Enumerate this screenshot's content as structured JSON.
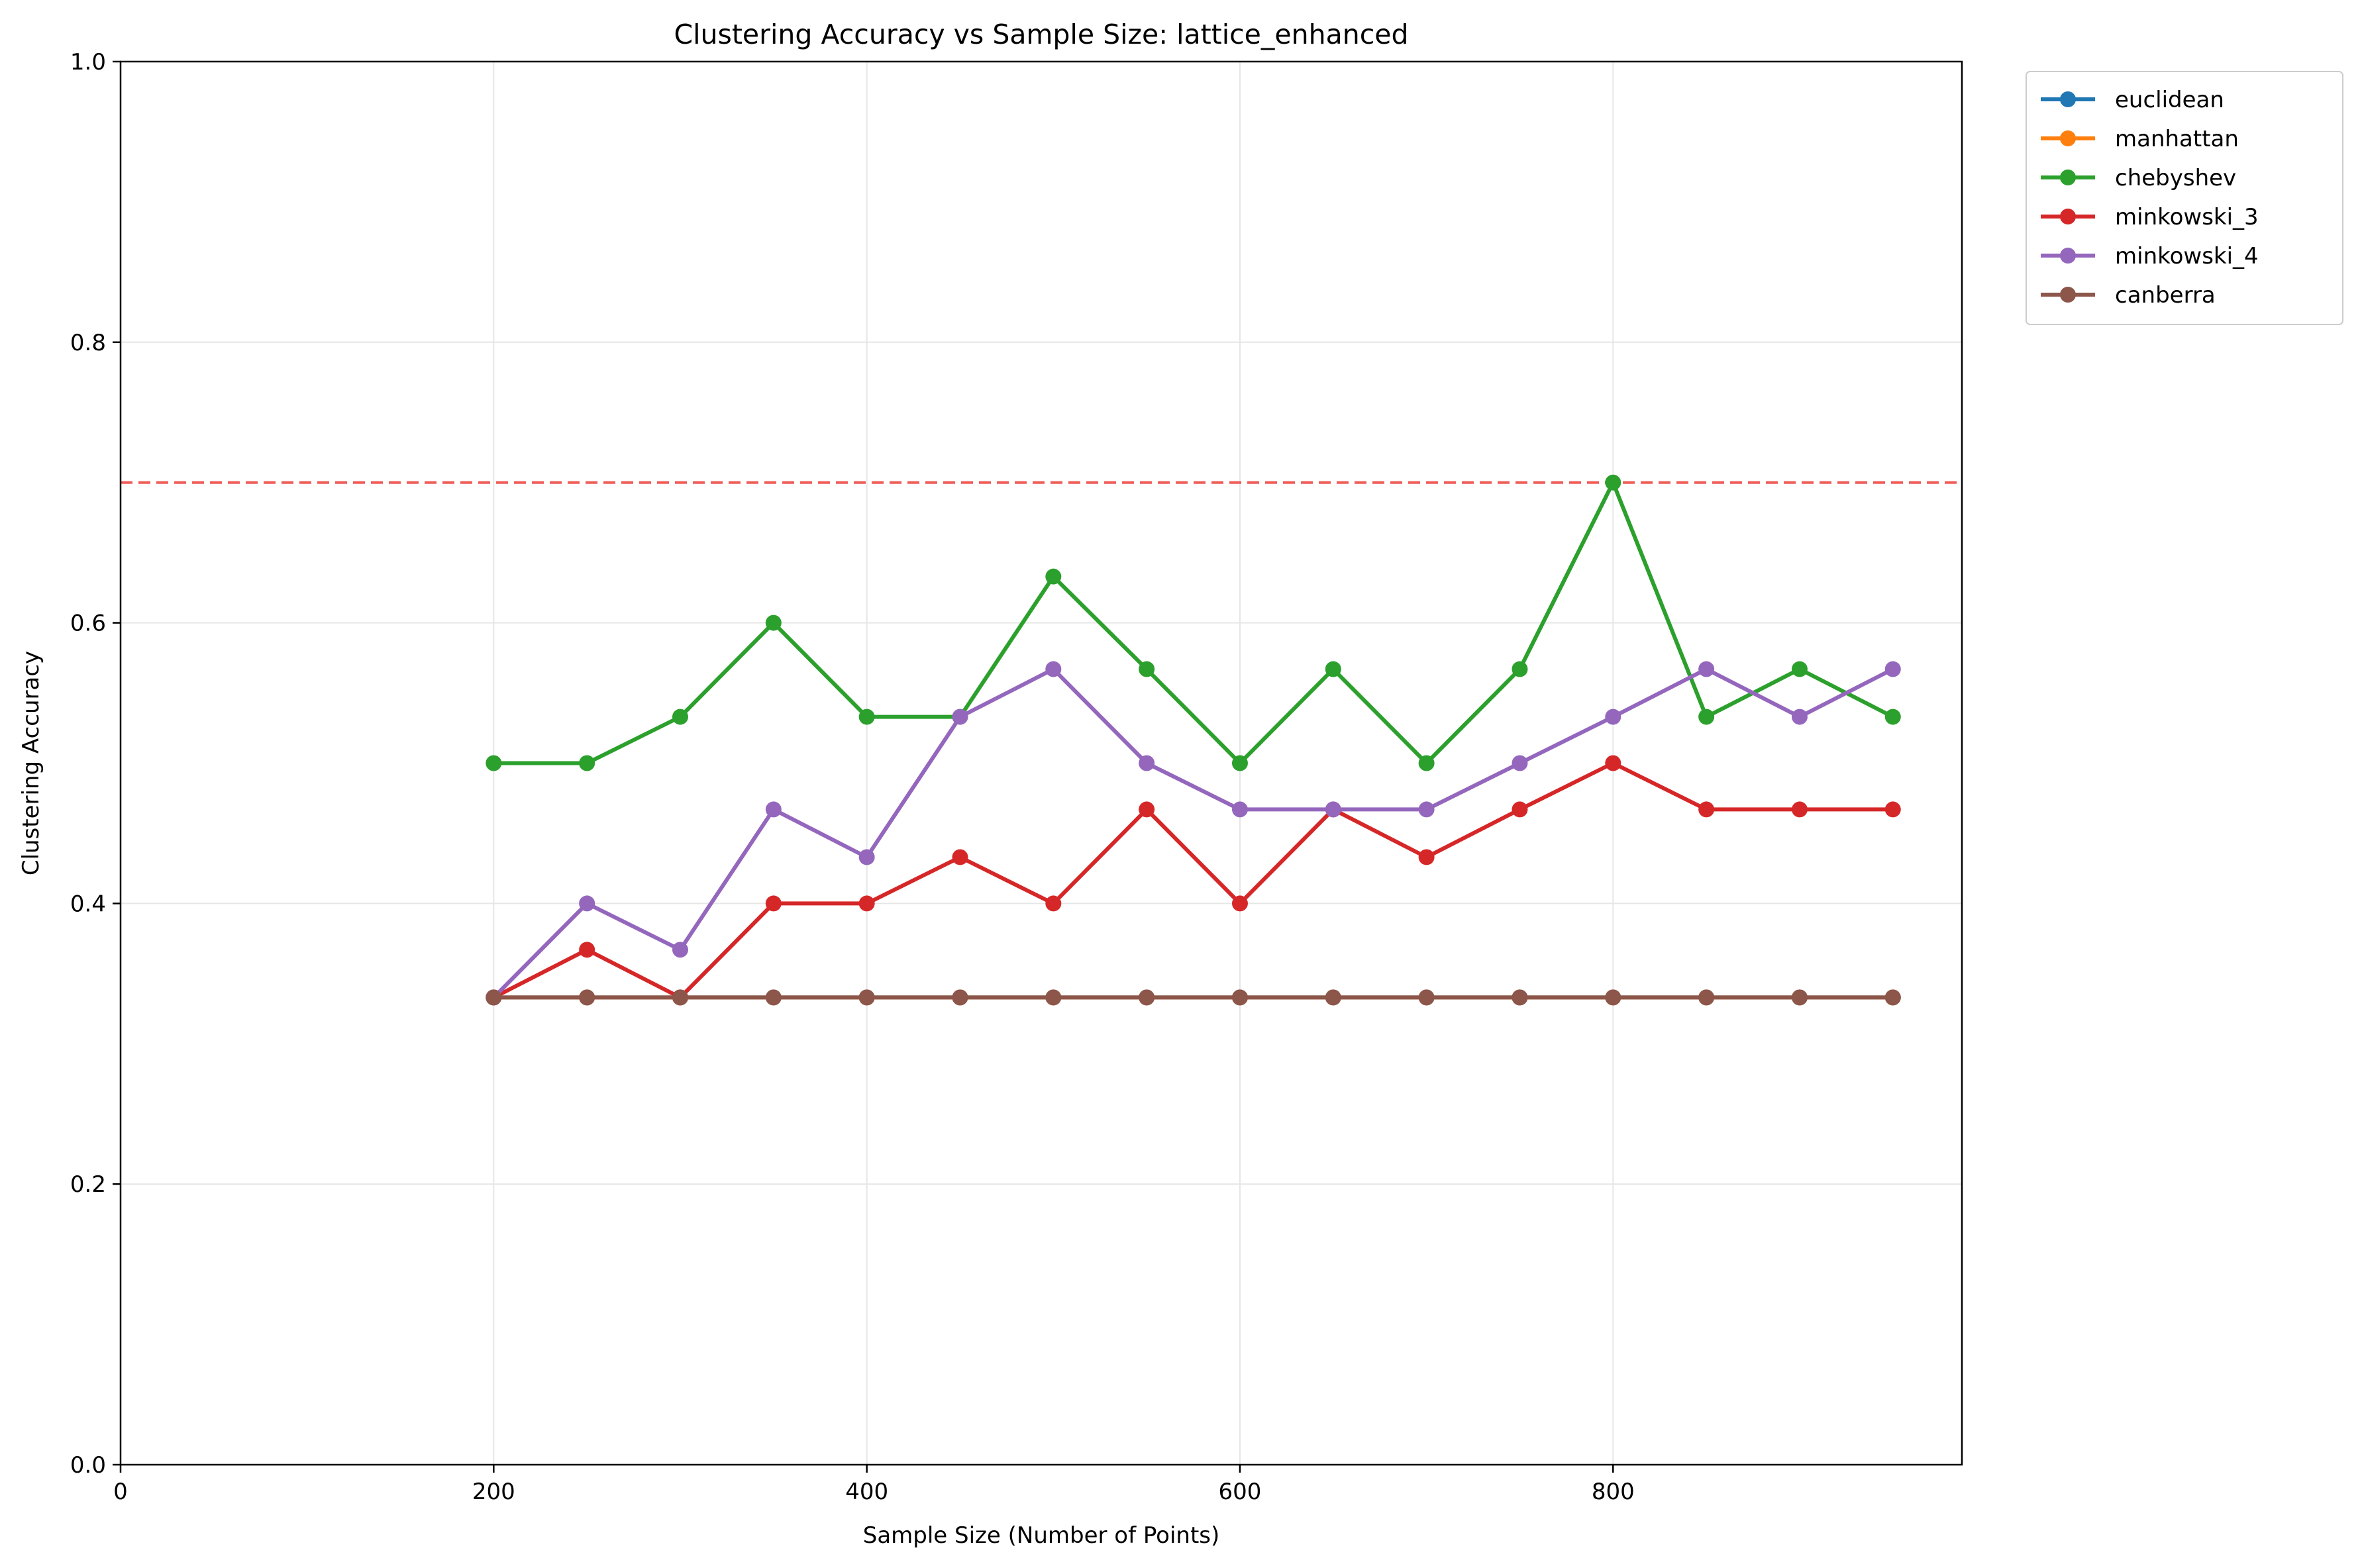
{
  "chart_data": {
    "type": "line",
    "title": "Clustering Accuracy vs Sample Size: lattice_enhanced",
    "xlabel": "Sample Size (Number of Points)",
    "ylabel": "Clustering Accuracy",
    "xlim": [
      0,
      987
    ],
    "ylim": [
      0.0,
      1.0
    ],
    "x_ticks": [
      0,
      200,
      400,
      600,
      800
    ],
    "y_ticks": [
      0.0,
      0.2,
      0.4,
      0.6,
      0.8,
      1.0
    ],
    "x_tick_labels": [
      "0",
      "200",
      "400",
      "600",
      "800"
    ],
    "y_tick_labels": [
      "0.0",
      "0.2",
      "0.4",
      "0.6",
      "0.8",
      "1.0"
    ],
    "grid": true,
    "legend_position": "outside-top-right",
    "reference_line": {
      "y": 0.7,
      "color": "#ef5350",
      "style": "dashed"
    },
    "x": [
      200,
      250,
      300,
      350,
      400,
      450,
      500,
      550,
      600,
      650,
      700,
      750,
      800,
      850,
      900,
      950
    ],
    "series": [
      {
        "name": "euclidean",
        "color": "#1f77b4",
        "values": [
          0.333,
          0.333,
          0.333,
          0.333,
          0.333,
          0.333,
          0.333,
          0.333,
          0.333,
          0.333,
          0.333,
          0.333,
          0.333,
          0.333,
          0.333,
          0.333
        ]
      },
      {
        "name": "manhattan",
        "color": "#ff7f0e",
        "values": [
          0.333,
          0.333,
          0.333,
          0.333,
          0.333,
          0.333,
          0.333,
          0.333,
          0.333,
          0.333,
          0.333,
          0.333,
          0.333,
          0.333,
          0.333,
          0.333
        ]
      },
      {
        "name": "chebyshev",
        "color": "#2ca02c",
        "values": [
          0.5,
          0.5,
          0.533,
          0.6,
          0.533,
          0.533,
          0.633,
          0.567,
          0.5,
          0.567,
          0.5,
          0.567,
          0.7,
          0.533,
          0.567,
          0.533
        ]
      },
      {
        "name": "minkowski_3",
        "color": "#d62728",
        "values": [
          0.333,
          0.367,
          0.333,
          0.4,
          0.4,
          0.433,
          0.4,
          0.467,
          0.4,
          0.467,
          0.433,
          0.467,
          0.5,
          0.467,
          0.467,
          0.467
        ]
      },
      {
        "name": "minkowski_4",
        "color": "#9467bd",
        "values": [
          0.333,
          0.4,
          0.367,
          0.467,
          0.433,
          0.533,
          0.567,
          0.5,
          0.467,
          0.467,
          0.467,
          0.5,
          0.533,
          0.567,
          0.533,
          0.567
        ]
      },
      {
        "name": "canberra",
        "color": "#8c564b",
        "values": [
          0.333,
          0.333,
          0.333,
          0.333,
          0.333,
          0.333,
          0.333,
          0.333,
          0.333,
          0.333,
          0.333,
          0.333,
          0.333,
          0.333,
          0.333,
          0.333
        ]
      }
    ]
  }
}
